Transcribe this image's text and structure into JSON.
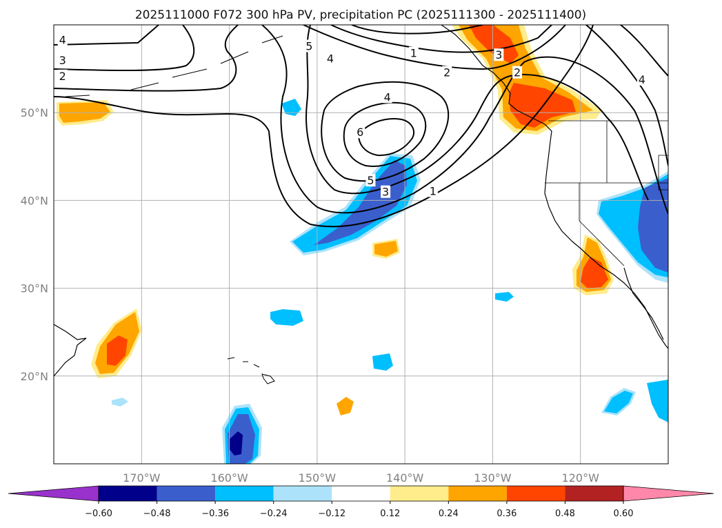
{
  "title": "2025111000 F072 300 hPa PV, precipitation PC (2025111300 - 2025111400)",
  "colors": {
    "background": "#ffffff",
    "axis": "#000000",
    "grid": "#b0b0b0",
    "coastline": "#000000",
    "contour": "#000000"
  },
  "chart_data": {
    "type": "contour",
    "map": {
      "lon_range": [
        -180,
        -110
      ],
      "lat_range": [
        10,
        60
      ],
      "lon_ticks": [
        -170,
        -160,
        -150,
        -140,
        -130,
        -120
      ],
      "lat_ticks": [
        20,
        30,
        40,
        50
      ],
      "lon_tick_labels": [
        "170°W",
        "160°W",
        "150°W",
        "140°W",
        "130°W",
        "120°W"
      ],
      "lat_tick_labels": [
        "20°N",
        "30°N",
        "40°N",
        "50°N"
      ],
      "grid": true
    },
    "pv_contours": {
      "levels": [
        1,
        2,
        3,
        4,
        5,
        6
      ],
      "labels": [
        {
          "text": "1",
          "lon": -139.0,
          "lat": 56.8
        },
        {
          "text": "2",
          "lon": -135.2,
          "lat": 54.6
        },
        {
          "text": "3",
          "lon": -129.3,
          "lat": 56.6
        },
        {
          "text": "2",
          "lon": -127.2,
          "lat": 54.6
        },
        {
          "text": "4",
          "lon": -113.0,
          "lat": 53.8
        },
        {
          "text": "4",
          "lon": -142.0,
          "lat": 51.8
        },
        {
          "text": "6",
          "lon": -145.1,
          "lat": 47.8
        },
        {
          "text": "4",
          "lon": -148.5,
          "lat": 56.2
        },
        {
          "text": "5",
          "lon": -150.9,
          "lat": 57.6
        },
        {
          "text": "4",
          "lon": -179.0,
          "lat": 58.3
        },
        {
          "text": "3",
          "lon": -179.0,
          "lat": 56.0
        },
        {
          "text": "2",
          "lon": -179.0,
          "lat": 54.2
        },
        {
          "text": "5",
          "lon": -143.9,
          "lat": 42.3
        },
        {
          "text": "3",
          "lon": -142.2,
          "lat": 41.0
        },
        {
          "text": "1",
          "lon": -136.8,
          "lat": 41.1
        }
      ]
    },
    "precip_pc": {
      "colorbar": {
        "ticks": [
          -0.6,
          -0.48,
          -0.36,
          -0.24,
          -0.12,
          0.12,
          0.24,
          0.36,
          0.48,
          0.6
        ],
        "tick_labels": [
          "−0.60",
          "−0.48",
          "−0.36",
          "−0.24",
          "−0.12",
          "0.12",
          "0.24",
          "0.36",
          "0.48",
          "0.60"
        ],
        "colors": [
          "#9932CC",
          "#00008B",
          "#3A5FCD",
          "#00BFFF",
          "#ADE3FA",
          "#FFFFFF",
          "#FFEC8B",
          "#FFA500",
          "#FF4500",
          "#B22222",
          "#FF88AA"
        ],
        "extend": "both"
      }
    }
  }
}
